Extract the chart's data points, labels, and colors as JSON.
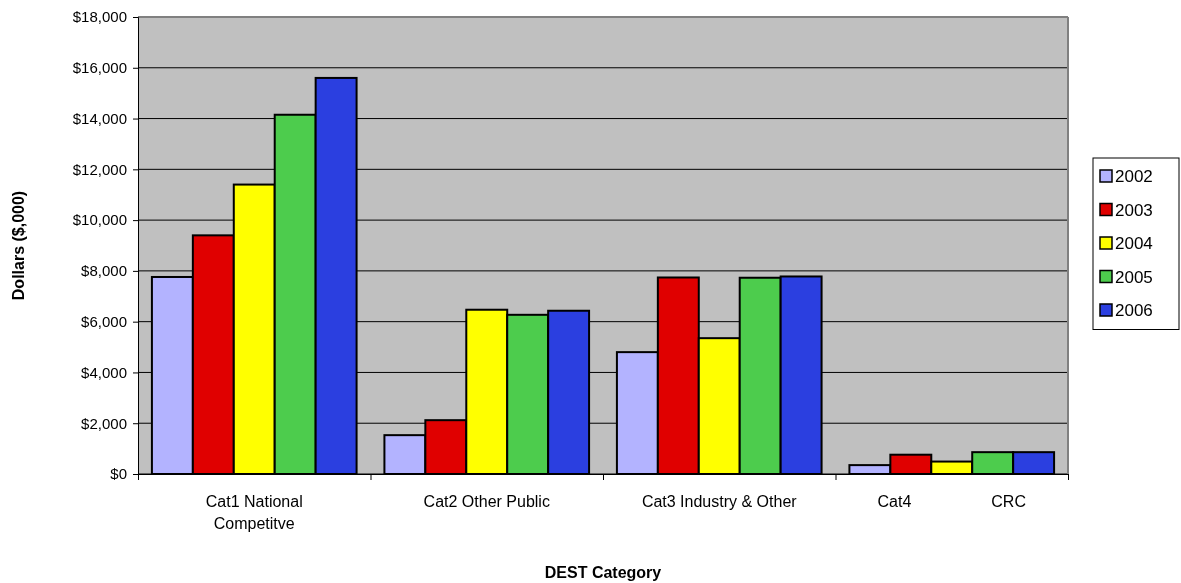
{
  "chart_data": {
    "type": "bar",
    "xlabel": "DEST Category",
    "ylabel": "Dollars ($,000)",
    "categories": [
      "Cat1 National Competitve",
      "Cat2 Other Public",
      "Cat3 Industry & Other",
      "Cat4                  CRC"
    ],
    "series": [
      {
        "name": "2002",
        "color": "#b3b3ff",
        "values": [
          7760,
          1530,
          4800,
          350
        ]
      },
      {
        "name": "2003",
        "color": "#e00000",
        "values": [
          9400,
          2120,
          7740,
          760
        ]
      },
      {
        "name": "2004",
        "color": "#ffff00",
        "values": [
          11400,
          6470,
          5350,
          490
        ]
      },
      {
        "name": "2005",
        "color": "#4dcc4d",
        "values": [
          14150,
          6270,
          7730,
          860
        ]
      },
      {
        "name": "2006",
        "color": "#2b3fe0",
        "values": [
          15600,
          6430,
          7780,
          860
        ]
      }
    ],
    "ylim": [
      0,
      18000
    ],
    "yticks": [
      {
        "value": 0,
        "label": "$0"
      },
      {
        "value": 2000,
        "label": "$2,000"
      },
      {
        "value": 4000,
        "label": "$4,000"
      },
      {
        "value": 6000,
        "label": "$6,000"
      },
      {
        "value": 8000,
        "label": "$8,000"
      },
      {
        "value": 10000,
        "label": "$10,000"
      },
      {
        "value": 12000,
        "label": "$12,000"
      },
      {
        "value": 14000,
        "label": "$14,000"
      },
      {
        "value": 16000,
        "label": "$16,000"
      },
      {
        "value": 18000,
        "label": "$18,000"
      }
    ],
    "grid": "y",
    "legend": "right"
  }
}
